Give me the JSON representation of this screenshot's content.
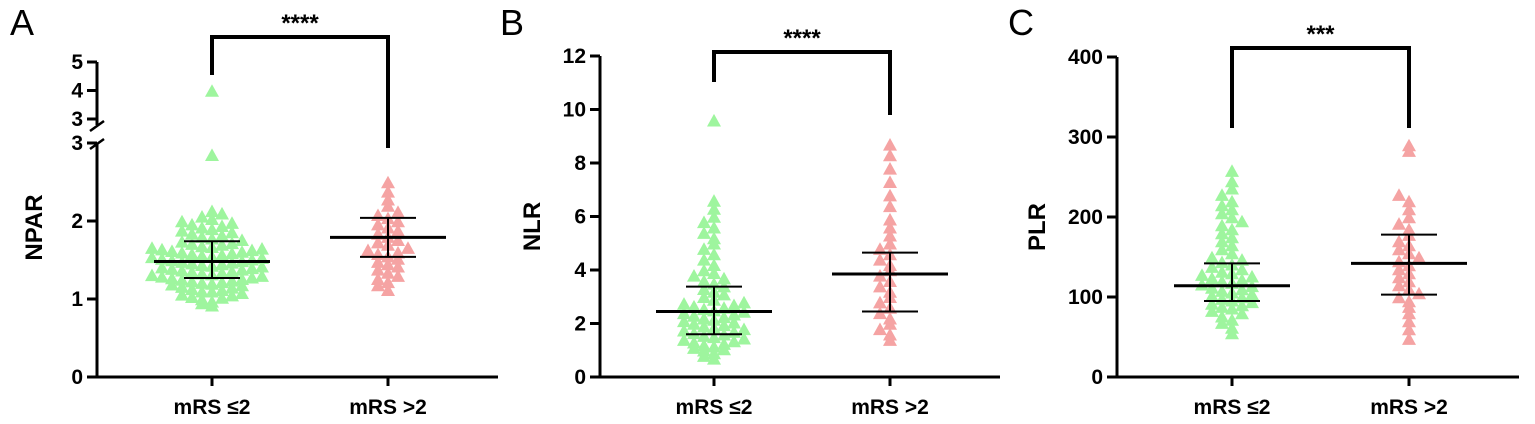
{
  "chart_data": [
    {
      "panel": "A",
      "type": "scatter",
      "ylabel": "NPAR",
      "xlabel": "",
      "categories": [
        "mRS ≤2",
        "mRS >2"
      ],
      "ylim_lower": [
        0,
        3
      ],
      "ylim_upper": [
        3,
        5
      ],
      "yticks_lower": [
        0,
        1,
        2,
        3
      ],
      "yticks_upper": [
        3,
        4,
        5
      ],
      "axis_break": true,
      "significance": "****",
      "colors": [
        "#9ef59e",
        "#f5a3a3"
      ],
      "groups": [
        {
          "category": "mRS ≤2",
          "median": 1.48,
          "q1": 1.27,
          "q3": 1.74,
          "values": [
            0.92,
            0.95,
            0.97,
            1.0,
            1.02,
            1.03,
            1.05,
            1.06,
            1.08,
            1.1,
            1.1,
            1.12,
            1.13,
            1.15,
            1.16,
            1.18,
            1.19,
            1.2,
            1.21,
            1.22,
            1.23,
            1.24,
            1.25,
            1.26,
            1.27,
            1.28,
            1.29,
            1.3,
            1.31,
            1.32,
            1.33,
            1.34,
            1.35,
            1.36,
            1.37,
            1.38,
            1.39,
            1.4,
            1.41,
            1.42,
            1.43,
            1.44,
            1.45,
            1.46,
            1.47,
            1.48,
            1.49,
            1.5,
            1.51,
            1.52,
            1.53,
            1.54,
            1.55,
            1.56,
            1.57,
            1.58,
            1.59,
            1.6,
            1.61,
            1.62,
            1.63,
            1.64,
            1.65,
            1.66,
            1.67,
            1.68,
            1.7,
            1.71,
            1.72,
            1.74,
            1.76,
            1.78,
            1.8,
            1.82,
            1.84,
            1.86,
            1.88,
            1.9,
            1.92,
            1.94,
            1.96,
            1.98,
            2.0,
            2.03,
            2.06,
            2.1,
            2.13,
            2.85,
            4.0
          ]
        },
        {
          "category": "mRS >2",
          "median": 1.79,
          "q1": 1.54,
          "q3": 2.04,
          "values": [
            1.12,
            1.18,
            1.22,
            1.26,
            1.3,
            1.34,
            1.38,
            1.42,
            1.45,
            1.48,
            1.52,
            1.55,
            1.58,
            1.6,
            1.63,
            1.66,
            1.7,
            1.73,
            1.76,
            1.8,
            1.84,
            1.88,
            1.92,
            1.96,
            2.0,
            2.04,
            2.08,
            2.12,
            2.2,
            2.28,
            2.38,
            2.5
          ]
        }
      ]
    },
    {
      "panel": "B",
      "type": "scatter",
      "ylabel": "NLR",
      "xlabel": "",
      "categories": [
        "mRS ≤2",
        "mRS >2"
      ],
      "ylim": [
        0,
        12
      ],
      "yticks": [
        0,
        2,
        4,
        6,
        8,
        10,
        12
      ],
      "significance": "****",
      "colors": [
        "#9ef59e",
        "#f5a3a3"
      ],
      "groups": [
        {
          "category": "mRS ≤2",
          "median": 2.45,
          "q1": 1.6,
          "q3": 3.38,
          "values": [
            0.7,
            0.8,
            0.9,
            1.0,
            1.05,
            1.1,
            1.15,
            1.2,
            1.25,
            1.3,
            1.35,
            1.4,
            1.45,
            1.5,
            1.55,
            1.6,
            1.65,
            1.7,
            1.75,
            1.8,
            1.85,
            1.9,
            1.95,
            2.0,
            2.05,
            2.1,
            2.15,
            2.2,
            2.25,
            2.3,
            2.35,
            2.4,
            2.45,
            2.5,
            2.55,
            2.6,
            2.65,
            2.7,
            2.75,
            2.8,
            2.9,
            3.0,
            3.1,
            3.2,
            3.3,
            3.4,
            3.5,
            3.6,
            3.7,
            3.8,
            3.9,
            4.0,
            4.2,
            4.4,
            4.6,
            4.8,
            5.0,
            5.2,
            5.4,
            5.6,
            5.8,
            6.0,
            6.3,
            6.6,
            9.6
          ]
        },
        {
          "category": "mRS >2",
          "median": 3.85,
          "q1": 2.45,
          "q3": 4.65,
          "values": [
            1.4,
            1.6,
            1.8,
            2.0,
            2.2,
            2.4,
            2.6,
            2.8,
            3.0,
            3.2,
            3.4,
            3.6,
            3.8,
            4.0,
            4.2,
            4.4,
            4.6,
            4.8,
            5.0,
            5.3,
            5.6,
            5.9,
            6.4,
            6.8,
            7.3,
            7.8,
            8.3,
            8.7
          ]
        }
      ]
    },
    {
      "panel": "C",
      "type": "scatter",
      "ylabel": "PLR",
      "xlabel": "",
      "categories": [
        "mRS ≤2",
        "mRS >2"
      ],
      "ylim": [
        0,
        400
      ],
      "yticks": [
        0,
        100,
        200,
        300,
        400
      ],
      "significance": "***",
      "colors": [
        "#9ef59e",
        "#f5a3a3"
      ],
      "groups": [
        {
          "category": "mRS ≤2",
          "median": 114,
          "q1": 95,
          "q3": 142,
          "values": [
            55,
            62,
            68,
            72,
            76,
            80,
            83,
            86,
            88,
            90,
            92,
            94,
            96,
            98,
            100,
            102,
            104,
            106,
            108,
            110,
            112,
            114,
            116,
            118,
            120,
            122,
            124,
            126,
            128,
            130,
            132,
            135,
            138,
            141,
            144,
            147,
            150,
            155,
            160,
            165,
            170,
            175,
            180,
            185,
            190,
            195,
            200,
            205,
            210,
            215,
            220,
            228,
            236,
            245,
            258
          ]
        },
        {
          "category": "mRS >2",
          "median": 142,
          "q1": 103,
          "q3": 178,
          "values": [
            48,
            60,
            70,
            80,
            88,
            95,
            100,
            105,
            110,
            115,
            120,
            125,
            130,
            135,
            140,
            145,
            150,
            155,
            160,
            165,
            170,
            178,
            185,
            192,
            200,
            210,
            220,
            228,
            283,
            290
          ]
        }
      ]
    }
  ]
}
